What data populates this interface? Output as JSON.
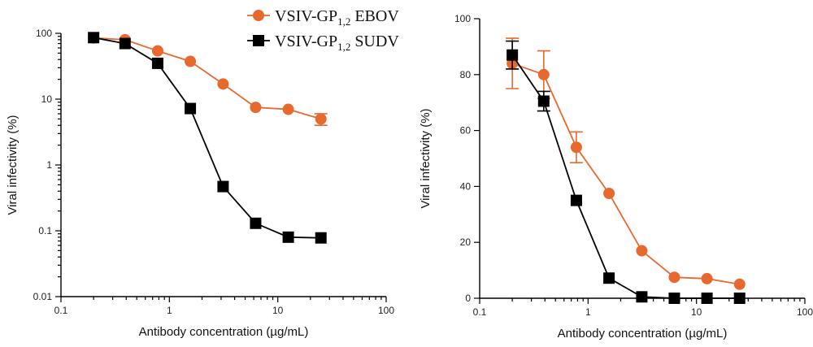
{
  "legend": {
    "entries": [
      {
        "prefix": "VSIV-GP",
        "sub": "1,2",
        "suffix": " EBOV",
        "color": "#e8692e",
        "marker": "circle"
      },
      {
        "prefix": "VSIV-GP",
        "sub": "1,2",
        "suffix": " SUDV",
        "color": "#000000",
        "marker": "square"
      }
    ]
  },
  "chart_data": [
    {
      "type": "line",
      "xscale": "log",
      "yscale": "log",
      "xlabel": "Antibody concentration (µg/mL)",
      "ylabel": "Viral infectivity (%)",
      "xlim": [
        0.1,
        100
      ],
      "ylim": [
        0.01,
        100
      ],
      "x_ticks": [
        0.1,
        1,
        10,
        100
      ],
      "x_tick_labels": [
        "0.1",
        "1",
        "10",
        "100"
      ],
      "y_ticks": [
        0.01,
        0.1,
        1,
        10,
        100
      ],
      "y_tick_labels": [
        "0.01",
        "0.1",
        "1",
        "10",
        "100"
      ],
      "x": [
        0.2,
        0.39,
        0.78,
        1.56,
        3.13,
        6.25,
        12.5,
        25
      ],
      "series": [
        {
          "name": "VSIV-GP1,2 EBOV",
          "color": "#e8692e",
          "marker": "circle",
          "values": [
            85,
            80,
            54,
            37.5,
            17,
            7.5,
            7,
            5
          ],
          "err": [
            0,
            0,
            0,
            0,
            0,
            0,
            0,
            1
          ]
        },
        {
          "name": "VSIV-GP1,2 SUDV",
          "color": "#000000",
          "marker": "square",
          "values": [
            86,
            70,
            35,
            7.2,
            0.47,
            0.13,
            0.08,
            0.078
          ],
          "err": [
            0,
            0,
            0,
            0,
            0,
            0,
            0,
            0
          ]
        }
      ]
    },
    {
      "type": "line",
      "xscale": "log",
      "yscale": "linear",
      "xlabel": "Antibody concentration (µg/mL)",
      "ylabel": "Viral infectivity (%)",
      "xlim": [
        0.1,
        100
      ],
      "ylim": [
        0,
        100
      ],
      "x_ticks": [
        0.1,
        1,
        10,
        100
      ],
      "x_tick_labels": [
        "0.1",
        "1",
        "10",
        "100"
      ],
      "y_ticks": [
        0,
        20,
        40,
        60,
        80,
        100
      ],
      "y_tick_labels": [
        "0",
        "20",
        "40",
        "60",
        "80",
        "100"
      ],
      "x": [
        0.2,
        0.39,
        0.78,
        1.56,
        3.13,
        6.25,
        12.5,
        25
      ],
      "series": [
        {
          "name": "VSIV-GP1,2 EBOV",
          "color": "#e8692e",
          "marker": "circle",
          "values": [
            84,
            80,
            54,
            37.5,
            17,
            7.5,
            7,
            5
          ],
          "err": [
            9,
            8.5,
            5.5,
            0,
            0,
            0,
            0,
            0
          ]
        },
        {
          "name": "VSIV-GP1,2 SUDV",
          "color": "#000000",
          "marker": "square",
          "values": [
            87,
            70.5,
            35,
            7.2,
            0.5,
            0,
            0,
            0
          ],
          "err": [
            5,
            3.5,
            0,
            0,
            0,
            0,
            0,
            0
          ]
        }
      ]
    }
  ]
}
